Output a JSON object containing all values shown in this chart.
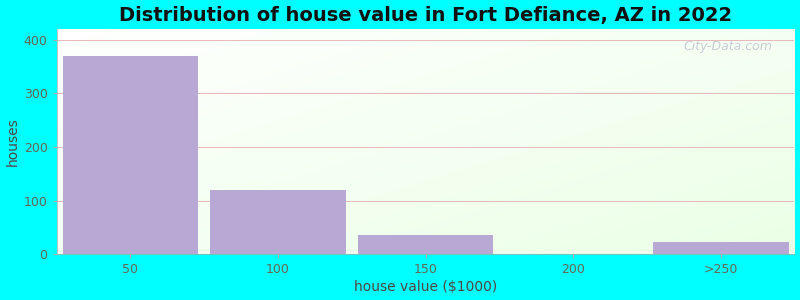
{
  "title": "Distribution of house value in Fort Defiance, AZ in 2022",
  "xlabel": "house value ($1000)",
  "ylabel": "houses",
  "categories": [
    "50",
    "100",
    "150",
    "200",
    ">250"
  ],
  "values": [
    370,
    120,
    35,
    0,
    22
  ],
  "bar_color": "#b8a8d4",
  "ylim": [
    0,
    420
  ],
  "yticks": [
    0,
    100,
    200,
    300,
    400
  ],
  "background_color": "#00ffff",
  "watermark": "City-Data.com",
  "bar_width": 0.92,
  "title_fontsize": 14,
  "label_fontsize": 10,
  "grid_color": "#e8b8b8",
  "tick_color": "#666655",
  "axis_label_color": "#554444"
}
